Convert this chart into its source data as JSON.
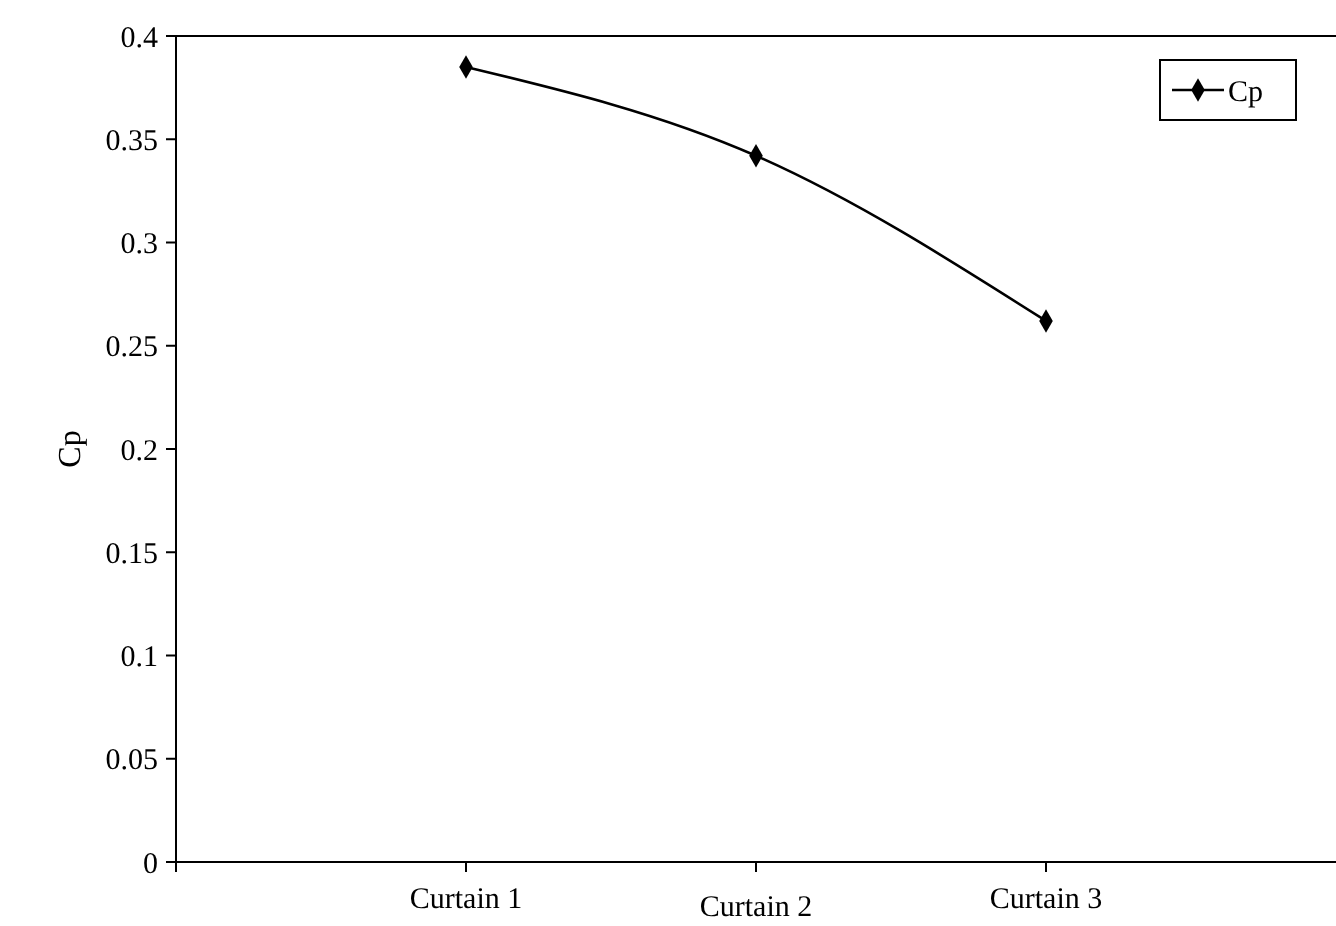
{
  "chart_data": {
    "type": "line",
    "ylabel": "Cp",
    "categories": [
      "Curtain 1",
      "Curtain 2",
      "Curtain 3"
    ],
    "series": [
      {
        "name": "Cp",
        "color": "#000000",
        "values": [
          0.385,
          0.342,
          0.262
        ]
      }
    ],
    "ylim": [
      0,
      0.4
    ],
    "yticks": [
      0,
      0.05,
      0.1,
      0.15,
      0.2,
      0.25,
      0.3,
      0.35,
      0.4
    ],
    "grid": false,
    "legend": "top right",
    "marker": "diamond",
    "line_style": "solid"
  }
}
